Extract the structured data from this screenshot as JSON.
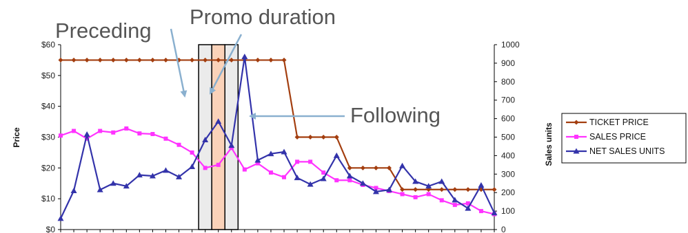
{
  "chart_data": {
    "type": "line",
    "title": "",
    "x_count": 34,
    "left_axis": {
      "label": "Price",
      "ticks": [
        "$0",
        "$10",
        "$20",
        "$30",
        "$40",
        "$50",
        "$60"
      ],
      "ylim": [
        0,
        60
      ]
    },
    "right_axis": {
      "label": "Sales units",
      "ticks": [
        "0",
        "100",
        "200",
        "300",
        "400",
        "500",
        "600",
        "700",
        "800",
        "900",
        "1000"
      ],
      "ylim": [
        0,
        1000
      ]
    },
    "grid": false,
    "legend_position": "right",
    "series": [
      {
        "name": "TICKET PRICE",
        "axis": "left",
        "color": "#a33e0f",
        "marker": "diamond",
        "values": [
          55,
          55,
          55,
          55,
          55,
          55,
          55,
          55,
          55,
          55,
          55,
          55,
          55,
          55,
          55,
          55,
          55,
          55,
          30,
          30,
          30,
          30,
          20,
          20,
          20,
          20,
          13,
          13,
          13,
          13,
          13,
          13,
          13,
          13
        ]
      },
      {
        "name": "SALES PRICE",
        "axis": "left",
        "color": "#ff33ff",
        "marker": "square",
        "values": [
          30.5,
          32,
          29.5,
          32,
          31.5,
          32.8,
          31.2,
          31,
          29.5,
          27.5,
          25,
          20,
          21,
          26.5,
          19.5,
          21.5,
          18.5,
          17,
          22,
          22,
          18.5,
          16,
          16,
          14.5,
          13.5,
          12.5,
          11.5,
          10.5,
          11.5,
          9.5,
          8,
          8.5,
          6,
          5
        ]
      },
      {
        "name": "NET SALES UNITS",
        "axis": "right",
        "color": "#3333aa",
        "marker": "triangle",
        "values": [
          60,
          210,
          515,
          215,
          250,
          235,
          295,
          290,
          320,
          285,
          340,
          485,
          585,
          455,
          935,
          375,
          410,
          420,
          280,
          245,
          275,
          400,
          290,
          250,
          205,
          215,
          345,
          260,
          235,
          260,
          160,
          115,
          240,
          90
        ]
      }
    ],
    "regions": [
      {
        "label": "Preceding",
        "from": 10.5,
        "to": 11.5,
        "fill": "#ebebeb"
      },
      {
        "label": "Promo duration",
        "from": 11.5,
        "to": 12.5,
        "fill": "#fad2b9"
      },
      {
        "label": "Following",
        "from": 12.5,
        "to": 13.5,
        "fill": "#ebebeb"
      }
    ],
    "annotations": [
      "Preceding",
      "Promo duration",
      "Following"
    ]
  }
}
